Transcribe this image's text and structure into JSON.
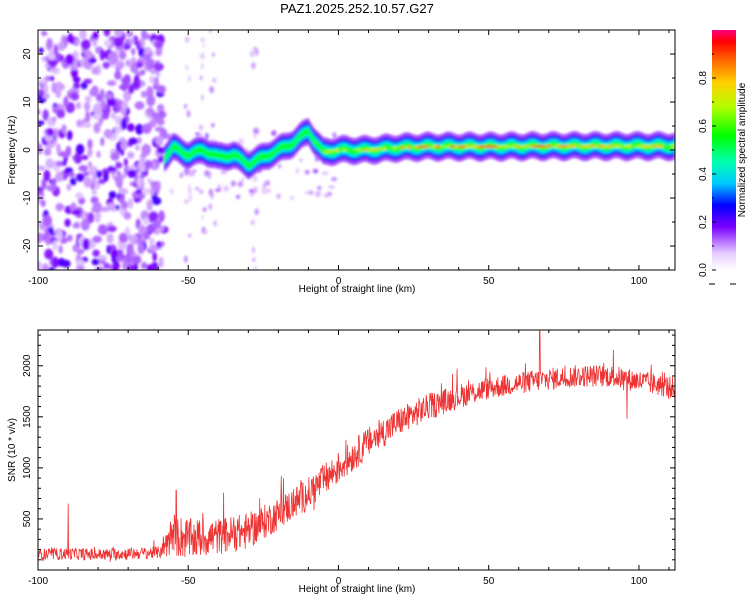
{
  "title": "PAZ1.2025.252.10.57.G27",
  "chart_data": [
    {
      "type": "heatmap",
      "xlabel": "Height of straight line (km)",
      "ylabel": "Frequency (Hz)",
      "xlim": [
        -100,
        112
      ],
      "ylim": [
        -25,
        25
      ],
      "xticks": [
        -100,
        -50,
        0,
        50,
        100
      ],
      "yticks": [
        -20,
        -10,
        0,
        10,
        20
      ],
      "ridge": {
        "description_free": true,
        "x": [
          -58,
          -55,
          -50,
          -45,
          -40,
          -35,
          -30,
          -25,
          -20,
          -15,
          -12,
          -10,
          -8,
          -5,
          0,
          10,
          20,
          30,
          50,
          70,
          90,
          112
        ],
        "freq": [
          -1.5,
          0.5,
          -1.0,
          0.0,
          -1.5,
          -1.0,
          -3.0,
          -1.5,
          0.0,
          1.5,
          3.0,
          4.0,
          2.0,
          -0.5,
          0.0,
          0.0,
          0.5,
          0.7,
          0.7,
          0.8,
          0.8,
          0.8
        ],
        "amplitude": [
          0.25,
          0.35,
          0.3,
          0.35,
          0.3,
          0.3,
          0.4,
          0.45,
          0.5,
          0.55,
          0.3,
          0.35,
          0.5,
          0.6,
          0.65,
          0.7,
          0.75,
          0.8,
          0.82,
          0.8,
          0.75,
          0.7
        ]
      },
      "noise_region_x": [
        -100,
        -58
      ],
      "colorbar": {
        "label": "Normalized spectral amplitude",
        "range": [
          0,
          1
        ],
        "ticks": [
          "0.0",
          "0.2",
          "0.4",
          "0.6",
          "0.8"
        ],
        "tick_values": [
          0,
          0.2,
          0.4,
          0.6,
          0.8
        ]
      }
    },
    {
      "type": "line",
      "xlabel": "Height of straight line (km)",
      "ylabel": "SNR (10 * v/v)",
      "xlim": [
        -100,
        112
      ],
      "ylim": [
        0,
        2350
      ],
      "xticks": [
        -100,
        -50,
        0,
        50,
        100
      ],
      "yticks": [
        500,
        1000,
        1500,
        2000
      ],
      "color": "#ee3333",
      "trend": {
        "x": [
          -100,
          -90,
          -80,
          -70,
          -60,
          -55,
          -50,
          -40,
          -30,
          -20,
          -10,
          0,
          10,
          20,
          30,
          40,
          50,
          60,
          70,
          80,
          90,
          100,
          112
        ],
        "y": [
          150,
          160,
          150,
          160,
          170,
          350,
          300,
          330,
          380,
          550,
          750,
          1000,
          1250,
          1450,
          1600,
          1700,
          1780,
          1830,
          1870,
          1900,
          1900,
          1850,
          1780
        ]
      },
      "noise_amplitude": [
        60,
        60,
        60,
        60,
        60,
        220,
        200,
        180,
        180,
        160,
        160,
        160,
        150,
        140,
        130,
        120,
        110,
        110,
        110,
        110,
        110,
        110,
        110
      ],
      "spikes": [
        {
          "x": -90,
          "y": 650
        },
        {
          "x": -54,
          "y": 780
        },
        {
          "x": 67,
          "y": 2340
        },
        {
          "x": 96,
          "y": 1480
        }
      ]
    }
  ]
}
